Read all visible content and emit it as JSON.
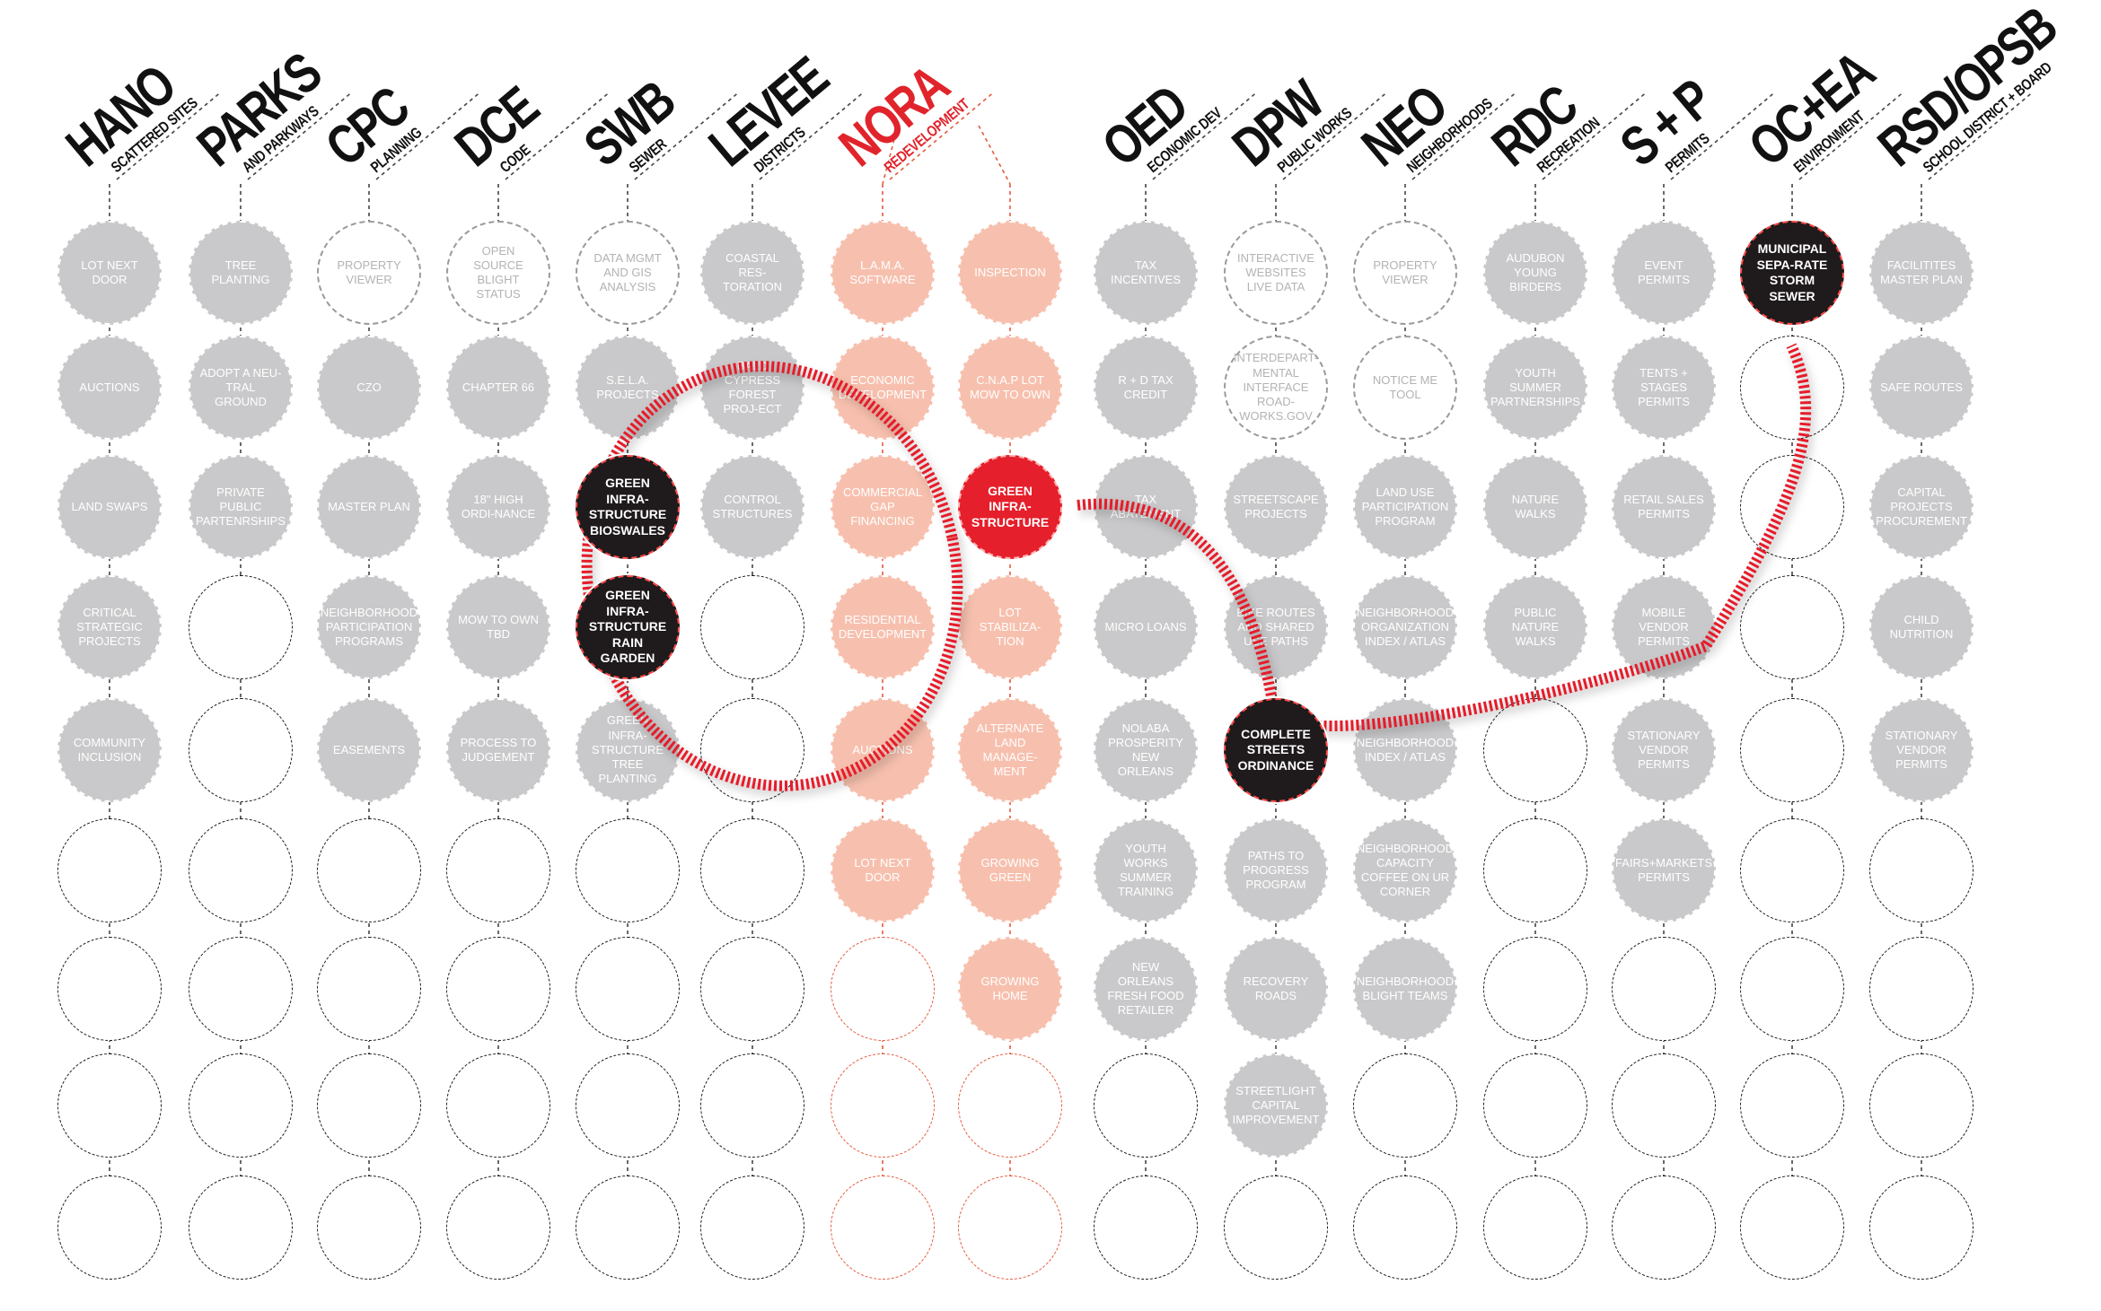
{
  "colors": {
    "gray": "#c9c9cb",
    "salmon": "#f7c0ae",
    "red": "#e51f2b",
    "black": "#1f1a1b"
  },
  "columns": [
    {
      "abbr": "HANO",
      "sub": "SCATTERED SITES",
      "cells": [
        {
          "t": "LOT NEXT DOOR",
          "s": "filled"
        },
        {
          "t": "AUCTIONS",
          "s": "filled"
        },
        {
          "t": "LAND SWAPS",
          "s": "filled"
        },
        {
          "t": "CRITICAL STRATEGIC PROJECTS",
          "s": "filled"
        },
        {
          "t": "COMMUNITY INCLUSION",
          "s": "filled"
        },
        {
          "s": "empty"
        },
        {
          "s": "empty"
        },
        {
          "s": "empty"
        },
        {
          "s": "empty"
        }
      ]
    },
    {
      "abbr": "PARKS",
      "sub": "AND PARKWAYS",
      "cells": [
        {
          "t": "TREE PLANTING",
          "s": "filled"
        },
        {
          "t": "ADOPT A NEU-TRAL GROUND",
          "s": "filled"
        },
        {
          "t": "PRIVATE PUBLIC PARTENRSHIPS",
          "s": "filled"
        },
        {
          "s": "empty"
        },
        {
          "s": "empty"
        },
        {
          "s": "empty"
        },
        {
          "s": "empty"
        },
        {
          "s": "empty"
        },
        {
          "s": "empty"
        }
      ]
    },
    {
      "abbr": "CPC",
      "sub": "PLANNING",
      "cells": [
        {
          "t": "PROPERTY VIEWER",
          "s": "outline"
        },
        {
          "t": "CZO",
          "s": "filled"
        },
        {
          "t": "MASTER PLAN",
          "s": "filled"
        },
        {
          "t": "NEIGHBORHOOD PARTICIPATION PROGRAMS",
          "s": "filled"
        },
        {
          "t": "EASEMENTS",
          "s": "filled"
        },
        {
          "s": "empty"
        },
        {
          "s": "empty"
        },
        {
          "s": "empty"
        },
        {
          "s": "empty"
        }
      ]
    },
    {
      "abbr": "DCE",
      "sub": "CODE",
      "cells": [
        {
          "t": "OPEN SOURCE BLIGHT STATUS",
          "s": "outline"
        },
        {
          "t": "CHAPTER 66",
          "s": "filled"
        },
        {
          "t": "18\" HIGH ORDI-NANCE",
          "s": "filled"
        },
        {
          "t": "MOW to OWN TBD",
          "s": "filled"
        },
        {
          "t": "PROCESS to JUDGEMENT",
          "s": "filled"
        },
        {
          "s": "empty"
        },
        {
          "s": "empty"
        },
        {
          "s": "empty"
        },
        {
          "s": "empty"
        }
      ]
    },
    {
      "abbr": "SWB",
      "sub": "SEWER",
      "cells": [
        {
          "t": "DATA MGMT AND GIS ANALYSIS",
          "s": "outline"
        },
        {
          "t": "S.E.L.A. PROJECTS",
          "s": "filled"
        },
        {
          "t": "GREEN INFRA-STRUCTURE BIOSWALES",
          "s": "black"
        },
        {
          "t": "GREEN INFRA-STRUCTURE RAIN GARDEN",
          "s": "black"
        },
        {
          "t": "GREEN INFRA-STRUCTURE TREE PLANTING",
          "s": "filled"
        },
        {
          "s": "empty"
        },
        {
          "s": "empty"
        },
        {
          "s": "empty"
        },
        {
          "s": "empty"
        }
      ]
    },
    {
      "abbr": "LEVEE",
      "sub": "DISTRICTS",
      "cells": [
        {
          "t": "COASTAL RES-TORATION",
          "s": "filled"
        },
        {
          "t": "BALD CYPRESS FOREST PROJ-ECT",
          "s": "filled"
        },
        {
          "t": "CONTROL STRUCTURES",
          "s": "filled"
        },
        {
          "s": "empty"
        },
        {
          "s": "empty"
        },
        {
          "s": "empty"
        },
        {
          "s": "empty"
        },
        {
          "s": "empty"
        },
        {
          "s": "empty"
        }
      ]
    },
    {
      "abbr": "NORA",
      "sub": "REDEVELOPMENT",
      "accent": true,
      "cells": [
        {
          "t": "L.A.M.A. SOFTWARE",
          "s": "salmon"
        },
        {
          "t": "ECONOMIC DEVELOPMENT",
          "s": "salmon"
        },
        {
          "t": "COMMERCIAL GAP FINANCING",
          "s": "salmon"
        },
        {
          "t": "RESIDENTIAL DEVELOPMENT",
          "s": "salmon"
        },
        {
          "t": "AUCTIONS",
          "s": "salmon"
        },
        {
          "t": "LOT NEXT DOOR",
          "s": "salmon"
        },
        {
          "s": "salmon-empty"
        },
        {
          "s": "salmon-empty"
        },
        {
          "s": "salmon-empty"
        }
      ]
    },
    {
      "abbr": "",
      "sub": "",
      "cells": [
        {
          "t": "INSPECTION",
          "s": "salmon"
        },
        {
          "t": "C.N.A.P LOT MOW to OWN",
          "s": "salmon"
        },
        {
          "t": "GREEN INFRA-STRUCTURE",
          "s": "red"
        },
        {
          "t": "LOT STABILIZA-TION",
          "s": "salmon"
        },
        {
          "t": "ALTERNATE LAND MANAGE-MENT",
          "s": "salmon"
        },
        {
          "t": "GROWING GREEN",
          "s": "salmon"
        },
        {
          "t": "GROWING HOME",
          "s": "salmon"
        },
        {
          "s": "salmon-empty"
        },
        {
          "s": "salmon-empty"
        }
      ]
    },
    {
      "abbr": "OED",
      "sub": "ECONOMIC DEV",
      "cells": [
        {
          "t": "TAX INCENTIVES",
          "s": "filled"
        },
        {
          "t": "R + D TAX CREDIT",
          "s": "filled"
        },
        {
          "t": "TAX ABATEMENT",
          "s": "filled"
        },
        {
          "t": "MICRO LOANS",
          "s": "filled"
        },
        {
          "t": "NOLABA PROSPERITY NEW ORLEANS",
          "s": "filled"
        },
        {
          "t": "YOUTH WORKS SUMMER TRAINING",
          "s": "filled"
        },
        {
          "t": "NEW ORLEANS FRESH FOOD RETAILER",
          "s": "filled"
        },
        {
          "s": "empty"
        },
        {
          "s": "empty"
        }
      ]
    },
    {
      "abbr": "DPW",
      "sub": "PUBLIC WORKS",
      "cells": [
        {
          "t": "INTERACTIVE WEBSITES LIVE DATA",
          "s": "outline"
        },
        {
          "t": "INTERDEPART-MENTAL INTERFACE ROAD-WORKS.GOV",
          "s": "outline"
        },
        {
          "t": "STREETSCAPE PROJECTS",
          "s": "filled"
        },
        {
          "t": "BIKE ROUTES AND SHARED USE PATHS",
          "s": "filled"
        },
        {
          "t": "COMPLETE STREETS ORDINANCE",
          "s": "black"
        },
        {
          "t": "PATHS TO PROGRESS PROGRAM",
          "s": "filled"
        },
        {
          "t": "RECOVERY ROADS",
          "s": "filled"
        },
        {
          "t": "STREETLIGHT CAPITAL IMPROVEMENT",
          "s": "filled"
        },
        {
          "s": "empty"
        }
      ]
    },
    {
      "abbr": "NEO",
      "sub": "NEIGHBORHOODS",
      "cells": [
        {
          "t": "PROPERTY VIEWER",
          "s": "outline"
        },
        {
          "t": "NOTICE ME TOOL",
          "s": "outline"
        },
        {
          "t": "LAND USE PARTICIPATION PROGRAM",
          "s": "filled"
        },
        {
          "t": "NEIGHBORHOOD ORGANIZATION INDEX / ATLAS",
          "s": "filled"
        },
        {
          "t": "NEIGHBORHOOD INDEX / ATLAS",
          "s": "filled"
        },
        {
          "t": "NEIGHBORHOOD CAPACITY COFFEE ON UR CORNER",
          "s": "filled"
        },
        {
          "t": "NEIGHBORHOOD BLIGHT TEAMS",
          "s": "filled"
        },
        {
          "s": "empty"
        },
        {
          "s": "empty"
        }
      ]
    },
    {
      "abbr": "RDC",
      "sub": "RECREATION",
      "cells": [
        {
          "t": "AUDUBON YOUNG BIRDERS",
          "s": "filled"
        },
        {
          "t": "YOUTH SUMMER PARTNERSHIPS",
          "s": "filled"
        },
        {
          "t": "NATURE WALKS",
          "s": "filled"
        },
        {
          "t": "PUBLIC NATURE WALKS",
          "s": "filled"
        },
        {
          "s": "empty"
        },
        {
          "s": "empty"
        },
        {
          "s": "empty"
        },
        {
          "s": "empty"
        },
        {
          "s": "empty"
        }
      ]
    },
    {
      "abbr": "S + P",
      "sub": "PERMITS",
      "cells": [
        {
          "t": "EVENT PERMITS",
          "s": "filled"
        },
        {
          "t": "TENTS + STAGES PERMITS",
          "s": "filled"
        },
        {
          "t": "RETAIL SALES PERMITS",
          "s": "filled"
        },
        {
          "t": "MOBILE VENDOR PERMITS",
          "s": "filled"
        },
        {
          "t": "STATIONARY VENDOR PERMITS",
          "s": "filled"
        },
        {
          "t": "FAIRS+MARKETS PERMITS",
          "s": "filled"
        },
        {
          "s": "empty"
        },
        {
          "s": "empty"
        },
        {
          "s": "empty"
        }
      ]
    },
    {
      "abbr": "OC+EA",
      "sub": "ENVIRONMENT",
      "cells": [
        {
          "t": "MUNICIPAL SEPA-RATE STORM SEWER",
          "s": "black"
        },
        {
          "s": "empty"
        },
        {
          "s": "empty"
        },
        {
          "s": "empty"
        },
        {
          "s": "empty"
        },
        {
          "s": "empty"
        },
        {
          "s": "empty"
        },
        {
          "s": "empty"
        },
        {
          "s": "empty"
        }
      ]
    },
    {
      "abbr": "RSD/OPSB",
      "sub": "SCHOOL DISTRICT + BOARD",
      "cells": [
        {
          "t": "FACILITITES MASTER PLAN",
          "s": "filled"
        },
        {
          "t": "SAFE ROUTES",
          "s": "filled"
        },
        {
          "t": "CAPITAL PROJECTS PROCUREMENT",
          "s": "filled"
        },
        {
          "t": "CHILD NUTRITION",
          "s": "filled"
        },
        {
          "t": "STATIONARY VENDOR PERMITS",
          "s": "filled"
        },
        {
          "s": "empty"
        },
        {
          "s": "empty"
        },
        {
          "s": "empty"
        },
        {
          "s": "empty"
        }
      ]
    }
  ]
}
